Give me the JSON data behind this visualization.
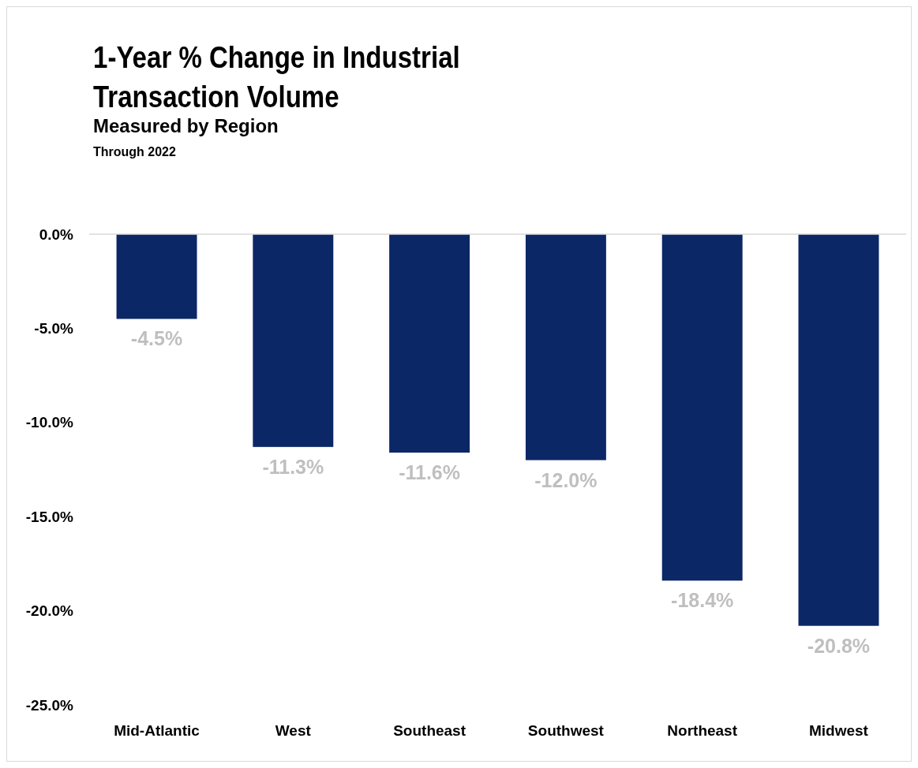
{
  "chart_data": {
    "type": "bar",
    "title": "1-Year % Change in Industrial Transaction Volume",
    "subtitle": "Measured by Region",
    "annotations": [
      "Through 2022"
    ],
    "categories": [
      "Mid-Atlantic",
      "West",
      "Southeast",
      "Southwest",
      "Northeast",
      "Midwest"
    ],
    "values": [
      -4.5,
      -11.3,
      -11.6,
      -12.0,
      -18.4,
      -20.8
    ],
    "value_labels": [
      "-4.5%",
      "-11.3%",
      "-11.6%",
      "-12.0%",
      "-18.4%",
      "-20.8%"
    ],
    "color": "#0c2766",
    "ylim": [
      -25,
      0
    ],
    "yticks": [
      {
        "value": 0,
        "label": "0.0%"
      },
      {
        "value": -5,
        "label": "-5.0%"
      },
      {
        "value": -10,
        "label": "-10.0%"
      },
      {
        "value": -15,
        "label": "-15.0%"
      },
      {
        "value": -20,
        "label": "-20.0%"
      },
      {
        "value": -25,
        "label": "-25.0%"
      }
    ],
    "grid": false
  }
}
